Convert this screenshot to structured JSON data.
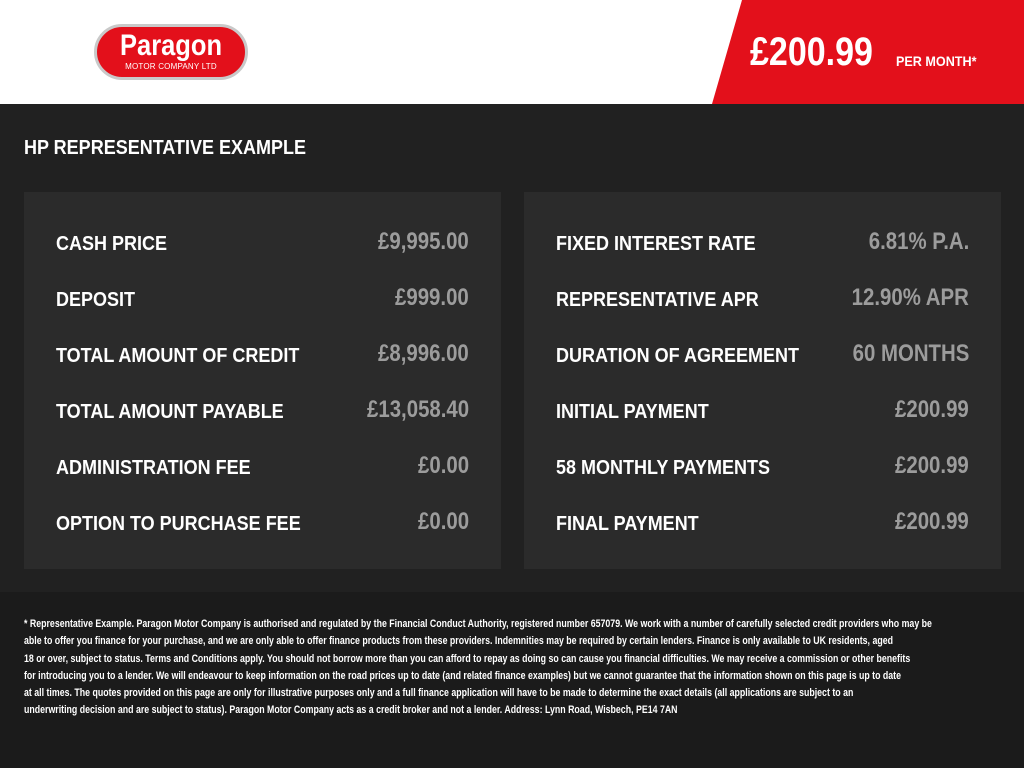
{
  "header": {
    "logo_text": "Paragon",
    "logo_subtext": "MOTOR COMPANY LTD",
    "monthly_price": "£200.99",
    "per_month": "PER MONTH*",
    "brand_color": "#e3101b"
  },
  "title": "HP REPRESENTATIVE EXAMPLE",
  "left": [
    {
      "label": "CASH PRICE",
      "value": "£9,995.00"
    },
    {
      "label": "DEPOSIT",
      "value": "£999.00"
    },
    {
      "label": "TOTAL AMOUNT OF CREDIT",
      "value": "£8,996.00"
    },
    {
      "label": "TOTAL AMOUNT PAYABLE",
      "value": "£13,058.40"
    },
    {
      "label": "ADMINISTRATION FEE",
      "value": "£0.00"
    },
    {
      "label": "OPTION TO PURCHASE FEE",
      "value": "£0.00"
    }
  ],
  "right": [
    {
      "label": "FIXED INTEREST RATE",
      "value": "6.81% P.A."
    },
    {
      "label": "REPRESENTATIVE APR",
      "value": "12.90% APR"
    },
    {
      "label": "DURATION OF AGREEMENT",
      "value": "60 MONTHS"
    },
    {
      "label": "INITIAL PAYMENT",
      "value": "£200.99"
    },
    {
      "label": "58 MONTHLY PAYMENTS",
      "value": "£200.99"
    },
    {
      "label": "FINAL PAYMENT",
      "value": "£200.99"
    }
  ],
  "footer_lines": [
    "* Representative Example. Paragon Motor Company is authorised and regulated by the Financial Conduct Authority, registered number 657079. We work with a number of carefully selected credit providers who may be",
    "able to offer you finance for your purchase, and we are only able to offer finance products from these providers. Indemnities may be required by certain lenders. Finance is only available to UK residents, aged",
    "18 or over, subject to status. Terms and Conditions apply. You should not borrow more than you can afford to repay as doing so can cause you financial difficulties. We may receive a commission or other benefits",
    "for introducing you to a lender. We will endeavour to keep information on the road prices up to date (and related finance examples) but we cannot guarantee that the information shown on this page is up to date",
    "at all times. The quotes provided on this page are only for illustrative purposes only and a full finance application will have to be made to determine the exact details (all applications are subject to an",
    "underwriting decision and are subject to status). Paragon Motor Company acts as a credit broker and not a lender. Address: Lynn Road, Wisbech, PE14 7AN"
  ]
}
